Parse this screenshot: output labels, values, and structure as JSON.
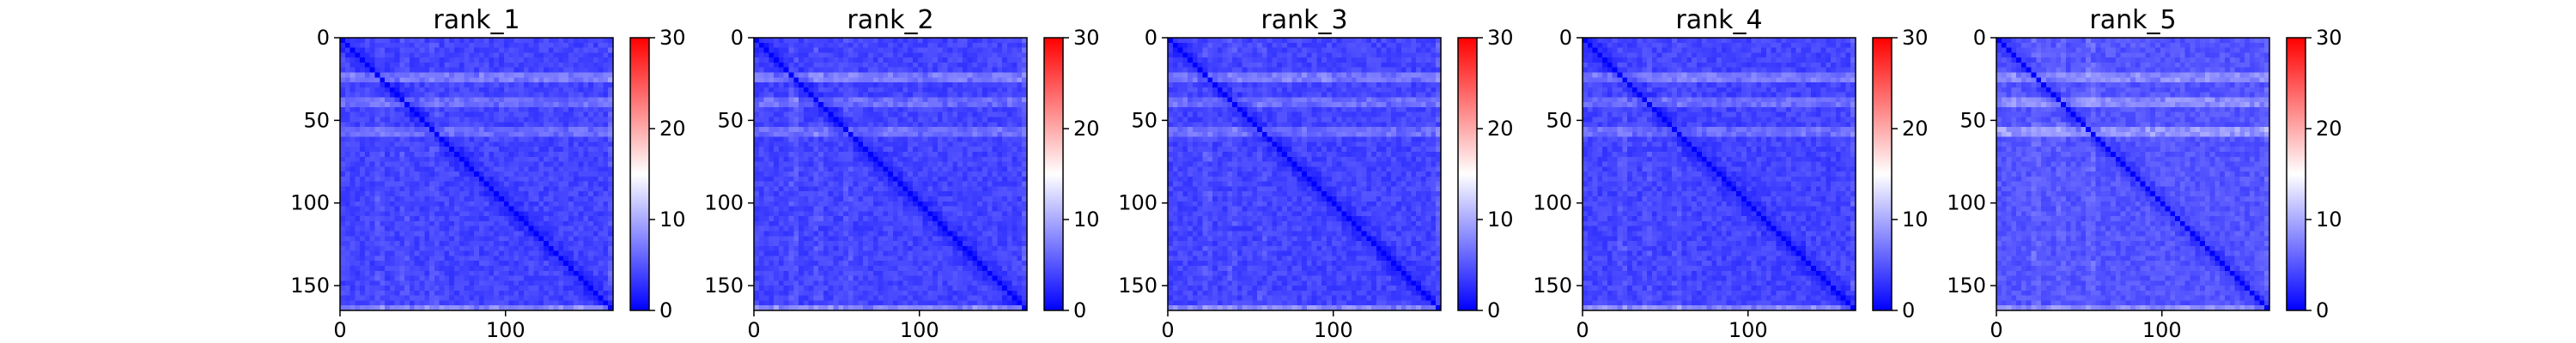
{
  "chart_data": [
    {
      "type": "heatmap",
      "title": "rank_1",
      "xlabel": "",
      "ylabel": "",
      "x_ticks": [
        "0",
        "100"
      ],
      "y_ticks": [
        "0",
        "50",
        "100",
        "150"
      ],
      "xlim": [
        0,
        165
      ],
      "ylim": [
        165,
        0
      ],
      "size": 165,
      "colorbar": {
        "min": 0,
        "max": 30,
        "ticks": [
          "0",
          "10",
          "20",
          "30"
        ],
        "colormap": "bwr"
      },
      "typical_value": 4,
      "diagonal_value": 0,
      "bright_rows": [
        [
          20,
          25,
          8
        ],
        [
          36,
          42,
          7
        ],
        [
          52,
          58,
          7
        ],
        [
          160,
          165,
          9
        ]
      ]
    },
    {
      "type": "heatmap",
      "title": "rank_2",
      "xlabel": "",
      "ylabel": "",
      "x_ticks": [
        "0",
        "100"
      ],
      "y_ticks": [
        "0",
        "50",
        "100",
        "150"
      ],
      "xlim": [
        0,
        165
      ],
      "ylim": [
        165,
        0
      ],
      "size": 165,
      "colorbar": {
        "min": 0,
        "max": 30,
        "ticks": [
          "0",
          "10",
          "20",
          "30"
        ],
        "colormap": "bwr"
      },
      "typical_value": 4,
      "diagonal_value": 0,
      "bright_rows": [
        [
          20,
          25,
          8
        ],
        [
          36,
          42,
          7
        ],
        [
          52,
          58,
          7
        ],
        [
          160,
          165,
          9
        ]
      ]
    },
    {
      "type": "heatmap",
      "title": "rank_3",
      "xlabel": "",
      "ylabel": "",
      "x_ticks": [
        "0",
        "100"
      ],
      "y_ticks": [
        "0",
        "50",
        "100",
        "150"
      ],
      "xlim": [
        0,
        165
      ],
      "ylim": [
        165,
        0
      ],
      "size": 165,
      "colorbar": {
        "min": 0,
        "max": 30,
        "ticks": [
          "0",
          "10",
          "20",
          "30"
        ],
        "colormap": "bwr"
      },
      "typical_value": 4,
      "diagonal_value": 0,
      "bright_rows": [
        [
          20,
          25,
          8
        ],
        [
          36,
          42,
          7
        ],
        [
          52,
          58,
          7
        ],
        [
          160,
          165,
          9
        ]
      ]
    },
    {
      "type": "heatmap",
      "title": "rank_4",
      "xlabel": "",
      "ylabel": "",
      "x_ticks": [
        "0",
        "100"
      ],
      "y_ticks": [
        "0",
        "50",
        "100",
        "150"
      ],
      "xlim": [
        0,
        165
      ],
      "ylim": [
        165,
        0
      ],
      "size": 165,
      "colorbar": {
        "min": 0,
        "max": 30,
        "ticks": [
          "0",
          "10",
          "20",
          "30"
        ],
        "colormap": "bwr"
      },
      "typical_value": 4,
      "diagonal_value": 0,
      "bright_rows": [
        [
          20,
          25,
          8
        ],
        [
          36,
          42,
          7
        ],
        [
          52,
          58,
          7
        ],
        [
          160,
          165,
          9
        ]
      ]
    },
    {
      "type": "heatmap",
      "title": "rank_5",
      "xlabel": "",
      "ylabel": "",
      "x_ticks": [
        "0",
        "100"
      ],
      "y_ticks": [
        "0",
        "50",
        "100",
        "150"
      ],
      "xlim": [
        0,
        165
      ],
      "ylim": [
        165,
        0
      ],
      "size": 165,
      "colorbar": {
        "min": 0,
        "max": 30,
        "ticks": [
          "0",
          "10",
          "20",
          "30"
        ],
        "colormap": "bwr"
      },
      "typical_value": 5,
      "diagonal_value": 0,
      "bright_rows": [
        [
          20,
          25,
          9
        ],
        [
          36,
          42,
          9
        ],
        [
          52,
          58,
          10
        ],
        [
          160,
          165,
          9
        ]
      ]
    }
  ]
}
